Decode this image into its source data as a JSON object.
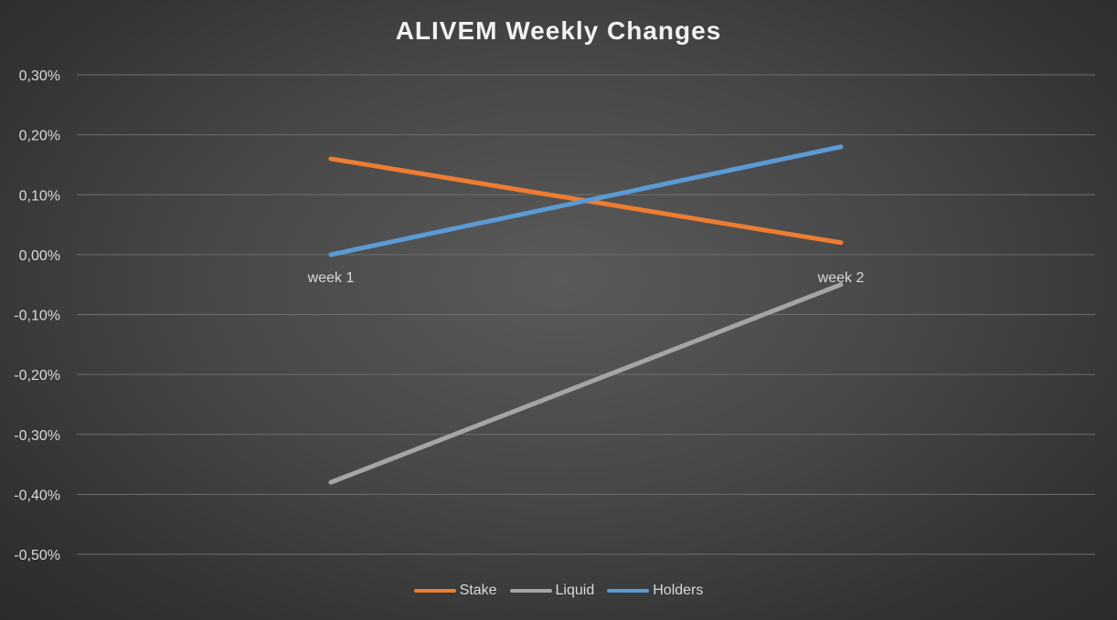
{
  "chart_data": {
    "type": "line",
    "title": "ALIVEM Weekly Changes",
    "xlabel": "",
    "ylabel": "",
    "categories": [
      "week 1",
      "week 2"
    ],
    "ylim": [
      -0.5,
      0.3
    ],
    "ytick_step": 0.1,
    "yticks": [
      {
        "value": 0.3,
        "label": "0,30%"
      },
      {
        "value": 0.2,
        "label": "0,20%"
      },
      {
        "value": 0.1,
        "label": "0,10%"
      },
      {
        "value": 0.0,
        "label": "0,00%"
      },
      {
        "value": -0.1,
        "label": "-0,10%"
      },
      {
        "value": -0.2,
        "label": "-0,20%"
      },
      {
        "value": -0.3,
        "label": "-0,30%"
      },
      {
        "value": -0.4,
        "label": "-0,40%"
      },
      {
        "value": -0.5,
        "label": "-0,50%"
      }
    ],
    "grid": true,
    "legend": "bottom",
    "series": [
      {
        "name": "Stake",
        "color": "#ed7d31",
        "values": [
          0.16,
          0.02
        ]
      },
      {
        "name": "Liquid",
        "color": "#a5a5a5",
        "values": [
          -0.38,
          -0.05
        ]
      },
      {
        "name": "Holders",
        "color": "#5b9bd5",
        "values": [
          0.0,
          0.18
        ]
      }
    ]
  }
}
